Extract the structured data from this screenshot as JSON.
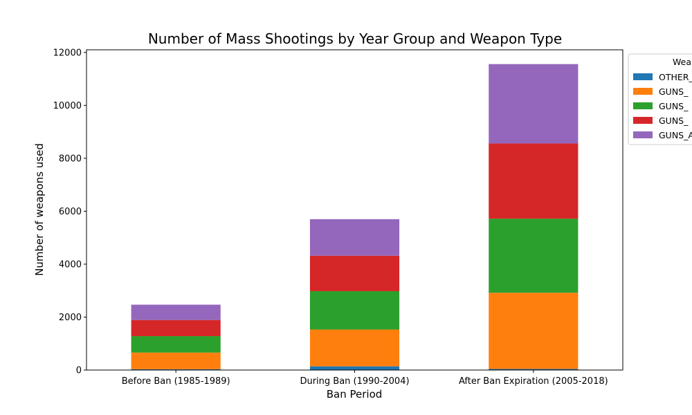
{
  "chart_data": {
    "type": "bar",
    "stacked": true,
    "title": "Number of Mass Shootings by Year Group and Weapon Type",
    "xlabel": "Ban Period",
    "ylabel": "Number of weapons used",
    "categories": [
      "Before Ban (1985-1989)",
      "During Ban (1990-2004)",
      "After Ban Expiration (2005-2018)"
    ],
    "ylim": [
      0,
      12100
    ],
    "yticks": [
      0,
      2000,
      4000,
      6000,
      8000,
      10000,
      12000
    ],
    "legend_title": "Wea",
    "legend_position": "outside top-right (clipped)",
    "series": [
      {
        "name": "OTHER_",
        "color": "#1f77b4",
        "values": [
          30,
          140,
          40
        ]
      },
      {
        "name": "GUNS_",
        "color": "#ff7f0e",
        "values": [
          630,
          1390,
          2880
        ]
      },
      {
        "name": "GUNS_",
        "color": "#2ca02c",
        "values": [
          620,
          1450,
          2800
        ]
      },
      {
        "name": "GUNS_",
        "color": "#d62728",
        "values": [
          610,
          1340,
          2840
        ]
      },
      {
        "name": "GUNS_A",
        "color": "#9467bd",
        "values": [
          580,
          1380,
          3000
        ]
      }
    ]
  }
}
